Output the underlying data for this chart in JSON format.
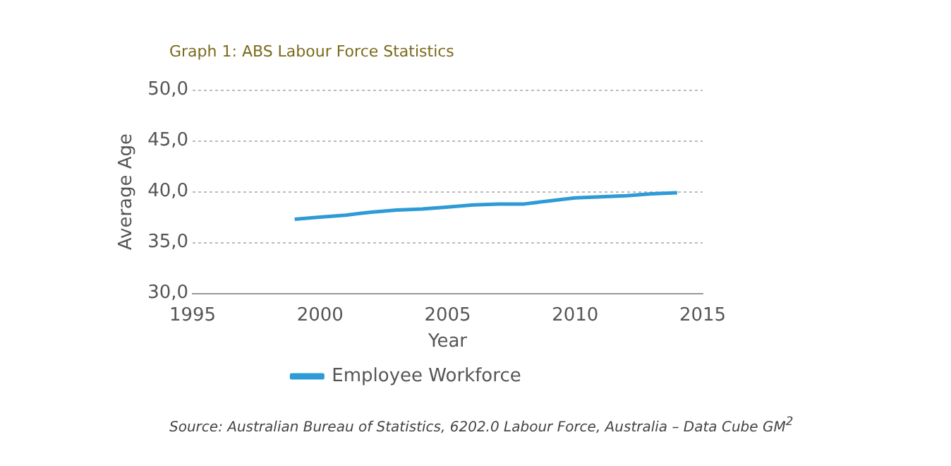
{
  "chart_data": {
    "type": "line",
    "title": "Graph 1: ABS Labour Force Statistics",
    "xlabel": "Year",
    "ylabel": "Average Age",
    "x": [
      1999,
      2000,
      2001,
      2002,
      2003,
      2004,
      2005,
      2006,
      2007,
      2008,
      2009,
      2010,
      2011,
      2012,
      2013,
      2014
    ],
    "series": [
      {
        "name": "Employee Workforce",
        "color": "#2e9ad6",
        "values": [
          37.3,
          37.5,
          37.7,
          38.0,
          38.2,
          38.3,
          38.5,
          38.7,
          38.8,
          38.8,
          39.1,
          39.4,
          39.5,
          39.6,
          39.8,
          39.9
        ]
      }
    ],
    "xlim": [
      1995,
      2015
    ],
    "xticks": [
      1995,
      2000,
      2005,
      2010,
      2015
    ],
    "ylim": [
      30,
      50
    ],
    "yticks": [
      {
        "value": 30,
        "label": "30,0"
      },
      {
        "value": 35,
        "label": "35,0"
      },
      {
        "value": 40,
        "label": "40,0"
      },
      {
        "value": 45,
        "label": "45,0"
      },
      {
        "value": 50,
        "label": "50,0"
      }
    ],
    "grid": "y",
    "legend": "bottom",
    "marker": "none",
    "line_style": "solid",
    "annotations": [
      "Source: Australian Bureau of Statistics, 6202.0 Labour Force, Australia – Data Cube GM$^{2}$"
    ]
  }
}
